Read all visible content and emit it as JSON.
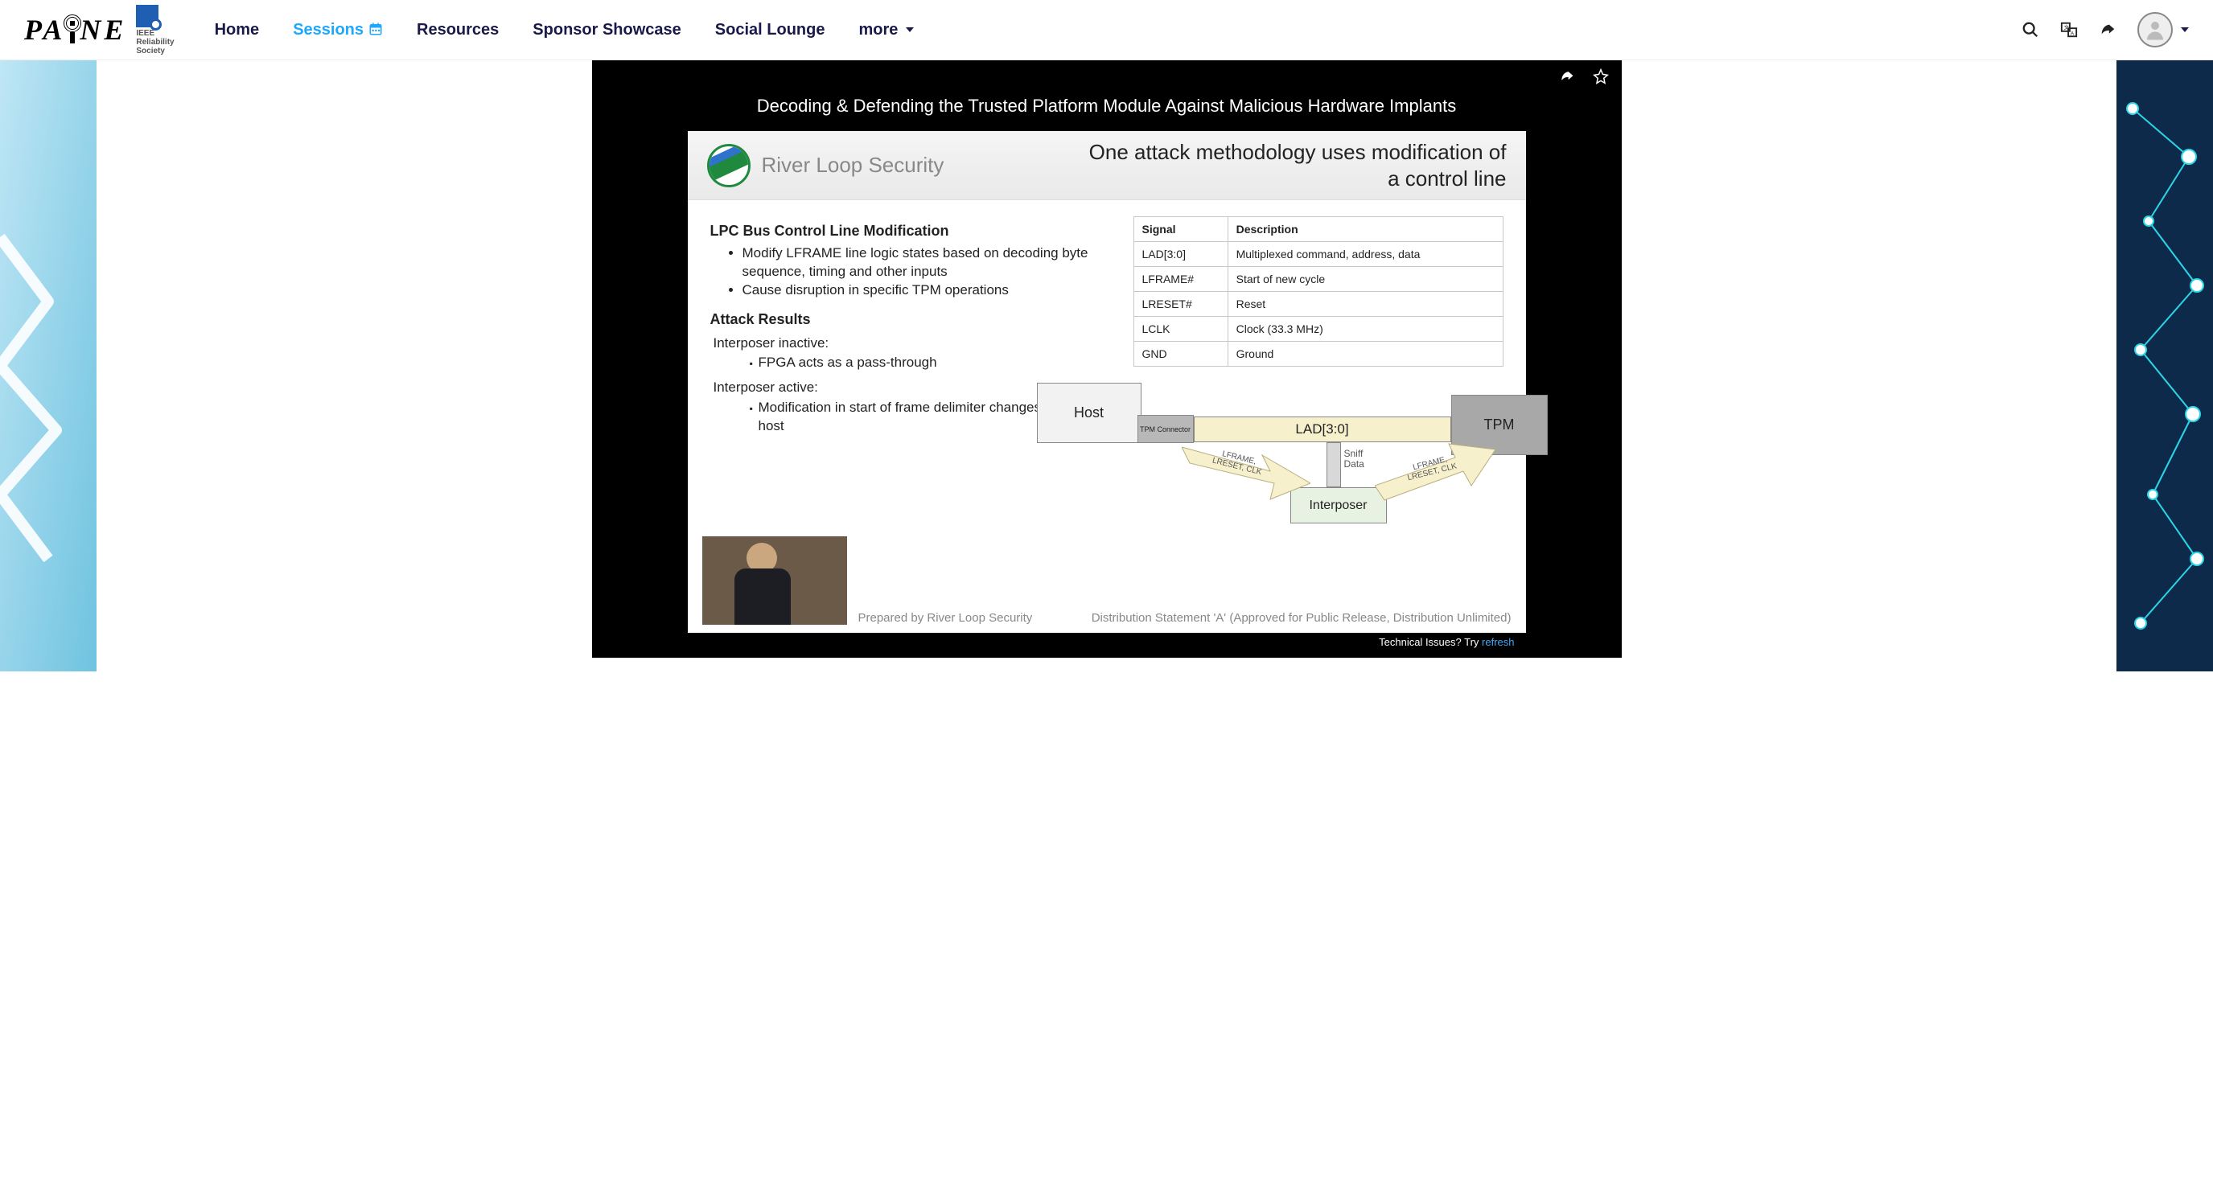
{
  "nav": {
    "items": [
      "Home",
      "Sessions",
      "Resources",
      "Sponsor Showcase",
      "Social Lounge",
      "more"
    ],
    "active_index": 1
  },
  "ieee": {
    "line1": "IEEE",
    "line2": "Reliability",
    "line3": "Society"
  },
  "video": {
    "title": "Decoding & Defending the Trusted Platform Module Against Malicious Hardware Implants"
  },
  "slide": {
    "org": "River Loop Security",
    "title": "One attack methodology uses modification of a control line",
    "section1_heading": "LPC Bus Control Line Modification",
    "section1_bullets": [
      "Modify LFRAME line logic states based on decoding byte sequence, timing and other inputs",
      "Cause disruption in specific TPM operations"
    ],
    "section2_heading": "Attack Results",
    "inactive_label": "Interposer inactive:",
    "inactive_bullets": [
      "FPGA acts as a pass-through"
    ],
    "active_label": "Interposer active:",
    "active_bullets": [
      "Modification in start of frame delimiter changes response to host"
    ],
    "prepared_by": "Prepared by River Loop Security",
    "distribution": "Distribution Statement 'A' (Approved for Public Release, Distribution Unlimited)"
  },
  "signal_table": {
    "columns": [
      "Signal",
      "Description"
    ],
    "rows": [
      [
        "LAD[3:0]",
        "Multiplexed command, address, data"
      ],
      [
        "LFRAME#",
        "Start of new cycle"
      ],
      [
        "LRESET#",
        "Reset"
      ],
      [
        "LCLK",
        "Clock (33.3 MHz)"
      ],
      [
        "GND",
        "Ground"
      ]
    ]
  },
  "diagram": {
    "host": "Host",
    "conn": "TPM Connector",
    "bus": "LAD[3:0]",
    "tpm": "TPM",
    "interposer": "Interposer",
    "sniff": "Sniff Data",
    "arrow1": "LFRAME, LRESET, CLK",
    "arrow2": "LFRAME, LRESET, CLK",
    "colors": {
      "host_bg": "#f2f2f2",
      "conn_bg": "#b8b8b8",
      "bus_bg": "#f7f0cd",
      "tpm_bg": "#a8a8a8",
      "interposer_bg": "#e8f2e2",
      "arrow_bg": "#f7f0cd"
    }
  },
  "tech": {
    "text": "Technical Issues? Try ",
    "link": "refresh"
  }
}
